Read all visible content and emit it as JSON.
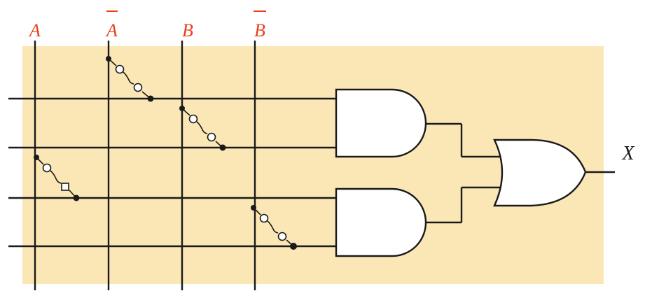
{
  "colors": {
    "array_background": "#fbe7b5",
    "input_label": "#e8401c",
    "wire": "#1a1a1a",
    "output_label": "#1a1a1a"
  },
  "inputs": [
    {
      "label": "A",
      "overbar": false
    },
    {
      "label": "A",
      "overbar": true
    },
    {
      "label": "B",
      "overbar": false
    },
    {
      "label": "B",
      "overbar": true
    }
  ],
  "output": {
    "label": "X"
  },
  "gates": [
    {
      "type": "AND"
    },
    {
      "type": "AND"
    },
    {
      "type": "OR"
    }
  ]
}
